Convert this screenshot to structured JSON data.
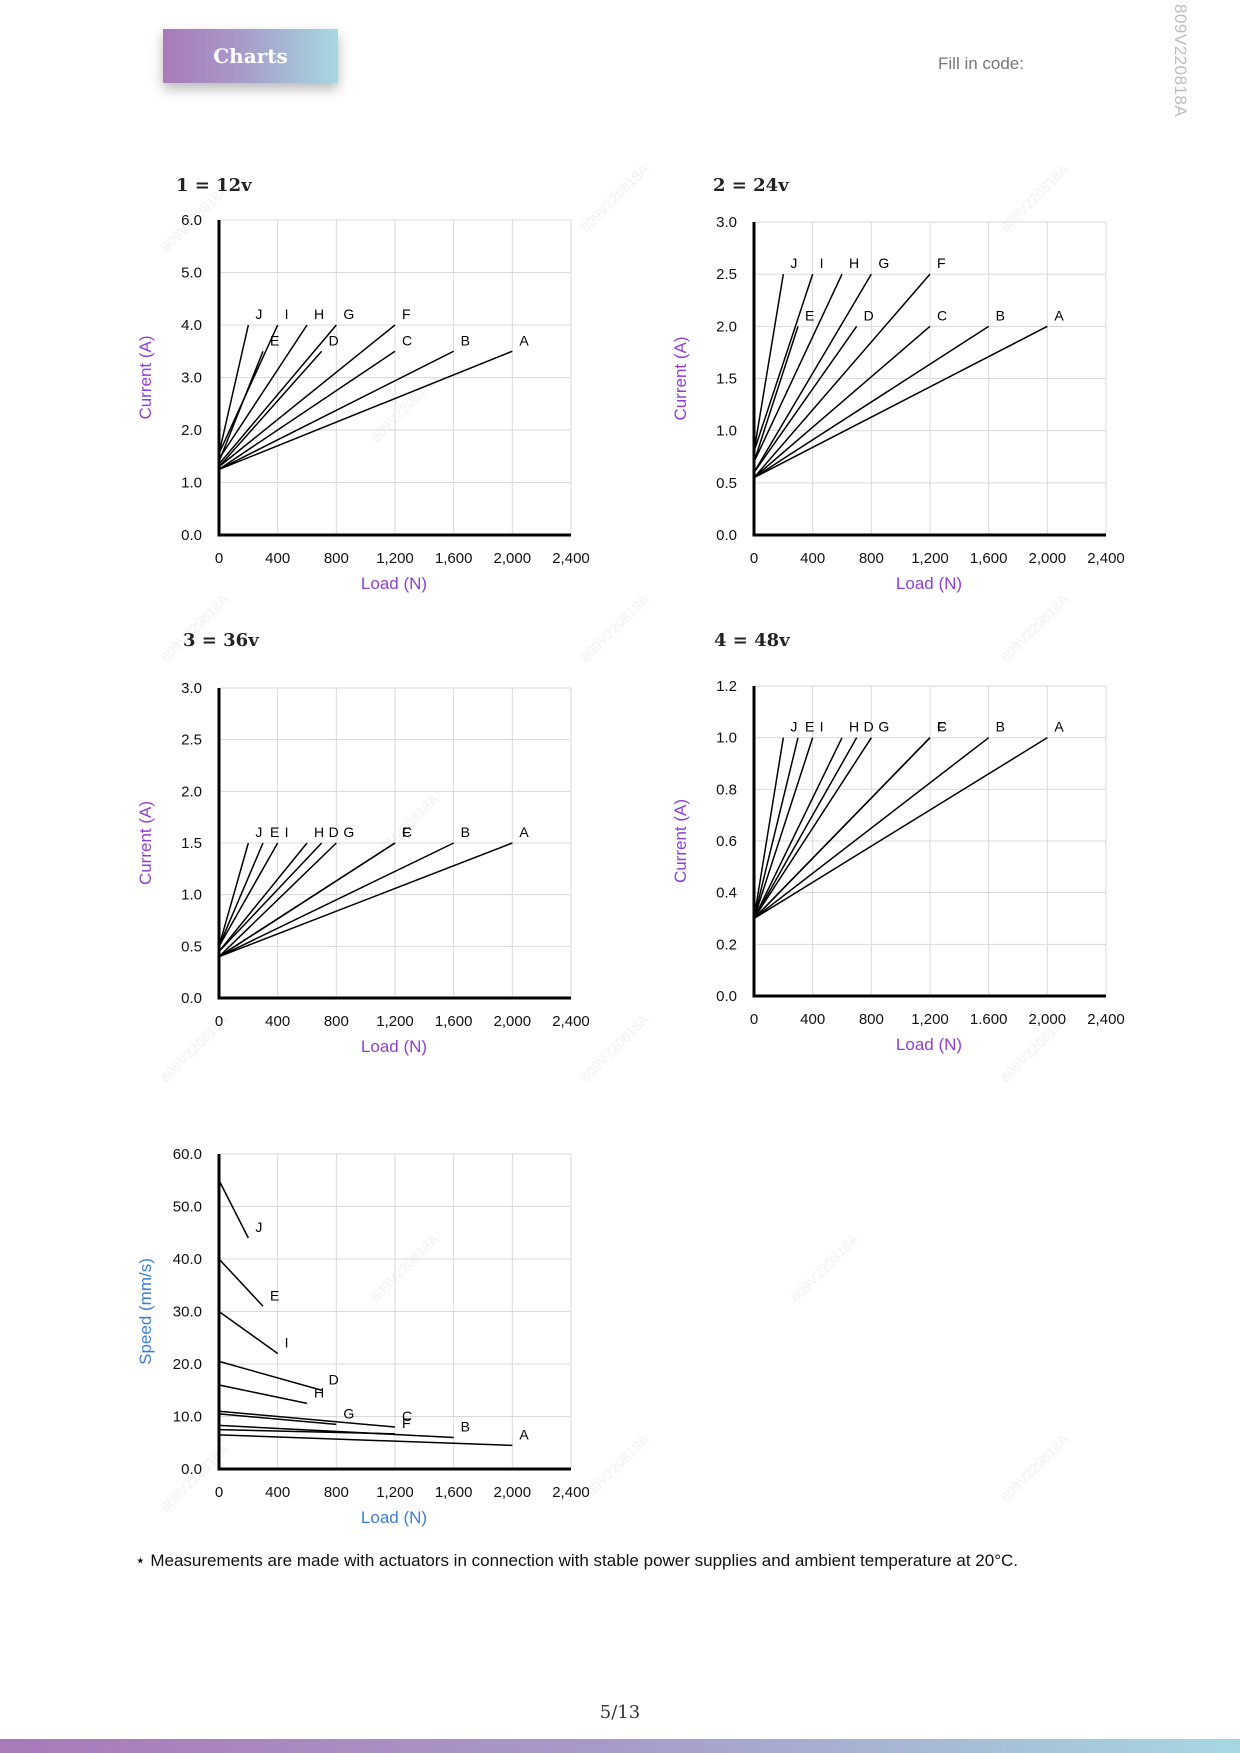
{
  "header": {
    "badge": "Charts",
    "fill_in_code": "Fill in code:",
    "doc_code": "809V220818A"
  },
  "watermark": "809V220818A",
  "footnote": "⋆ Measurements are made with actuators in connection with stable power supplies and ambient temperature at 20°C.",
  "page_number": "5∕13",
  "colors": {
    "current_axis_label": "#8e3fd6",
    "speed_axis_label": "#3b7dd8",
    "header_gradient_start": "#a979b9",
    "header_gradient_end": "#a6d8e0"
  },
  "chart_data": [
    {
      "type": "line",
      "title": "1 = 12v",
      "xlabel": "Load (N)",
      "ylabel": "Current (A)",
      "xlim": [
        0,
        2400
      ],
      "ylim": [
        0,
        6
      ],
      "xticks": [
        0,
        400,
        800,
        1200,
        1600,
        2000,
        2400
      ],
      "xtick_labels": [
        "0",
        "400",
        "800",
        "1,200",
        "1,600",
        "2,000",
        "2,400"
      ],
      "yticks": [
        0,
        1,
        2,
        3,
        4,
        5,
        6
      ],
      "ytick_labels": [
        "0.0",
        "1.0",
        "2.0",
        "3.0",
        "4.0",
        "5.0",
        "6.0"
      ],
      "grid": true,
      "series": [
        {
          "name": "J",
          "x": [
            0,
            200
          ],
          "y": [
            1.55,
            4.0
          ]
        },
        {
          "name": "I",
          "x": [
            0,
            400
          ],
          "y": [
            1.55,
            4.0
          ]
        },
        {
          "name": "E",
          "x": [
            0,
            300
          ],
          "y": [
            1.4,
            3.5
          ]
        },
        {
          "name": "H",
          "x": [
            0,
            600
          ],
          "y": [
            1.45,
            4.0
          ]
        },
        {
          "name": "G",
          "x": [
            0,
            800
          ],
          "y": [
            1.35,
            4.0
          ]
        },
        {
          "name": "D",
          "x": [
            0,
            700
          ],
          "y": [
            1.3,
            3.5
          ]
        },
        {
          "name": "F",
          "x": [
            0,
            1200
          ],
          "y": [
            1.3,
            4.0
          ]
        },
        {
          "name": "C",
          "x": [
            0,
            1200
          ],
          "y": [
            1.25,
            3.5
          ]
        },
        {
          "name": "B",
          "x": [
            0,
            1600
          ],
          "y": [
            1.25,
            3.5
          ]
        },
        {
          "name": "A",
          "x": [
            0,
            2000
          ],
          "y": [
            1.25,
            3.5
          ]
        }
      ]
    },
    {
      "type": "line",
      "title": "2 = 24v",
      "xlabel": "Load (N)",
      "ylabel": "Current (A)",
      "xlim": [
        0,
        2400
      ],
      "ylim": [
        0,
        3
      ],
      "xticks": [
        0,
        400,
        800,
        1200,
        1600,
        2000,
        2400
      ],
      "xtick_labels": [
        "0",
        "400",
        "800",
        "1,200",
        "1,600",
        "2,000",
        "2,400"
      ],
      "yticks": [
        0,
        0.5,
        1.0,
        1.5,
        2.0,
        2.5,
        3.0
      ],
      "ytick_labels": [
        "0.0",
        "0.5",
        "1.0",
        "1.5",
        "2.0",
        "2.5",
        "3.0"
      ],
      "grid": true,
      "series": [
        {
          "name": "J",
          "x": [
            0,
            200
          ],
          "y": [
            0.8,
            2.5
          ]
        },
        {
          "name": "I",
          "x": [
            0,
            400
          ],
          "y": [
            0.8,
            2.5
          ]
        },
        {
          "name": "E",
          "x": [
            0,
            300
          ],
          "y": [
            0.7,
            2.0
          ]
        },
        {
          "name": "H",
          "x": [
            0,
            600
          ],
          "y": [
            0.7,
            2.5
          ]
        },
        {
          "name": "G",
          "x": [
            0,
            800
          ],
          "y": [
            0.6,
            2.5
          ]
        },
        {
          "name": "D",
          "x": [
            0,
            700
          ],
          "y": [
            0.6,
            2.0
          ]
        },
        {
          "name": "F",
          "x": [
            0,
            1200
          ],
          "y": [
            0.55,
            2.5
          ]
        },
        {
          "name": "C",
          "x": [
            0,
            1200
          ],
          "y": [
            0.55,
            2.0
          ]
        },
        {
          "name": "B",
          "x": [
            0,
            1600
          ],
          "y": [
            0.55,
            2.0
          ]
        },
        {
          "name": "A",
          "x": [
            0,
            2000
          ],
          "y": [
            0.55,
            2.0
          ]
        }
      ]
    },
    {
      "type": "line",
      "title": "3 = 36v",
      "xlabel": "Load (N)",
      "ylabel": "Current (A)",
      "xlim": [
        0,
        2400
      ],
      "ylim": [
        0,
        3
      ],
      "xticks": [
        0,
        400,
        800,
        1200,
        1600,
        2000,
        2400
      ],
      "xtick_labels": [
        "0",
        "400",
        "800",
        "1,200",
        "1,600",
        "2,000",
        "2,400"
      ],
      "yticks": [
        0,
        0.5,
        1.0,
        1.5,
        2.0,
        2.5,
        3.0
      ],
      "ytick_labels": [
        "0.0",
        "0.5",
        "1.0",
        "1.5",
        "2.0",
        "2.5",
        "3.0"
      ],
      "grid": true,
      "series": [
        {
          "name": "J",
          "x": [
            0,
            200
          ],
          "y": [
            0.5,
            1.5
          ]
        },
        {
          "name": "E",
          "x": [
            0,
            300
          ],
          "y": [
            0.5,
            1.5
          ]
        },
        {
          "name": "I",
          "x": [
            0,
            400
          ],
          "y": [
            0.5,
            1.5
          ]
        },
        {
          "name": "H",
          "x": [
            0,
            600
          ],
          "y": [
            0.45,
            1.5
          ]
        },
        {
          "name": "D",
          "x": [
            0,
            700
          ],
          "y": [
            0.45,
            1.5
          ]
        },
        {
          "name": "G",
          "x": [
            0,
            800
          ],
          "y": [
            0.4,
            1.5
          ]
        },
        {
          "name": "F",
          "x": [
            0,
            1200
          ],
          "y": [
            0.4,
            1.5
          ]
        },
        {
          "name": "C",
          "x": [
            0,
            1200
          ],
          "y": [
            0.4,
            1.5
          ]
        },
        {
          "name": "B",
          "x": [
            0,
            1600
          ],
          "y": [
            0.4,
            1.5
          ]
        },
        {
          "name": "A",
          "x": [
            0,
            2000
          ],
          "y": [
            0.4,
            1.5
          ]
        }
      ]
    },
    {
      "type": "line",
      "title": "4 = 48v",
      "xlabel": "Load (N)",
      "ylabel": "Current (A)",
      "xlim": [
        0,
        2400
      ],
      "ylim": [
        0,
        1.2
      ],
      "xticks": [
        0,
        400,
        800,
        1200,
        1600,
        2000,
        2400
      ],
      "xtick_labels": [
        "0",
        "400",
        "800",
        "1,200",
        "1.600",
        "2,000",
        "2,400"
      ],
      "yticks": [
        0,
        0.2,
        0.4,
        0.6,
        0.8,
        1.0,
        1.2
      ],
      "ytick_labels": [
        "0.0",
        "0.2",
        "0.4",
        "0.6",
        "0.8",
        "1.0",
        "1.2"
      ],
      "grid": true,
      "series": [
        {
          "name": "J",
          "x": [
            0,
            200
          ],
          "y": [
            0.3,
            1.0
          ]
        },
        {
          "name": "E",
          "x": [
            0,
            300
          ],
          "y": [
            0.3,
            1.0
          ]
        },
        {
          "name": "I",
          "x": [
            0,
            400
          ],
          "y": [
            0.3,
            1.0
          ]
        },
        {
          "name": "H",
          "x": [
            0,
            600
          ],
          "y": [
            0.3,
            1.0
          ]
        },
        {
          "name": "D",
          "x": [
            0,
            700
          ],
          "y": [
            0.3,
            1.0
          ]
        },
        {
          "name": "G",
          "x": [
            0,
            800
          ],
          "y": [
            0.3,
            1.0
          ]
        },
        {
          "name": "C",
          "x": [
            0,
            1200
          ],
          "y": [
            0.3,
            1.0
          ]
        },
        {
          "name": "F",
          "x": [
            0,
            1200
          ],
          "y": [
            0.3,
            1.0
          ]
        },
        {
          "name": "B",
          "x": [
            0,
            1600
          ],
          "y": [
            0.3,
            1.0
          ]
        },
        {
          "name": "A",
          "x": [
            0,
            2000
          ],
          "y": [
            0.3,
            1.0
          ]
        }
      ]
    },
    {
      "type": "line",
      "title": "",
      "xlabel": "Load (N)",
      "ylabel": "Speed (mm/s)",
      "xlim": [
        0,
        2400
      ],
      "ylim": [
        0,
        60
      ],
      "xticks": [
        0,
        400,
        800,
        1200,
        1600,
        2000,
        2400
      ],
      "xtick_labels": [
        "0",
        "400",
        "800",
        "1,200",
        "1,600",
        "2,000",
        "2,400"
      ],
      "yticks": [
        0,
        10,
        20,
        30,
        40,
        50,
        60
      ],
      "ytick_labels": [
        "0.0",
        "10.0",
        "20.0",
        "30.0",
        "40.0",
        "50.0",
        "60.0"
      ],
      "grid": true,
      "series": [
        {
          "name": "J",
          "x": [
            0,
            200
          ],
          "y": [
            55,
            44
          ]
        },
        {
          "name": "E",
          "x": [
            0,
            300
          ],
          "y": [
            40,
            31
          ]
        },
        {
          "name": "I",
          "x": [
            0,
            400
          ],
          "y": [
            30,
            22
          ]
        },
        {
          "name": "D",
          "x": [
            0,
            700
          ],
          "y": [
            20.5,
            15
          ]
        },
        {
          "name": "H",
          "x": [
            0,
            600
          ],
          "y": [
            16,
            12.5
          ]
        },
        {
          "name": "C",
          "x": [
            0,
            1200
          ],
          "y": [
            11,
            8
          ]
        },
        {
          "name": "G",
          "x": [
            0,
            800
          ],
          "y": [
            10.5,
            8.5
          ]
        },
        {
          "name": "B",
          "x": [
            0,
            1600
          ],
          "y": [
            8.3,
            6
          ]
        },
        {
          "name": "F",
          "x": [
            0,
            1200
          ],
          "y": [
            7.5,
            6.7
          ]
        },
        {
          "name": "A",
          "x": [
            0,
            2000
          ],
          "y": [
            6.5,
            4.5
          ]
        }
      ]
    }
  ]
}
